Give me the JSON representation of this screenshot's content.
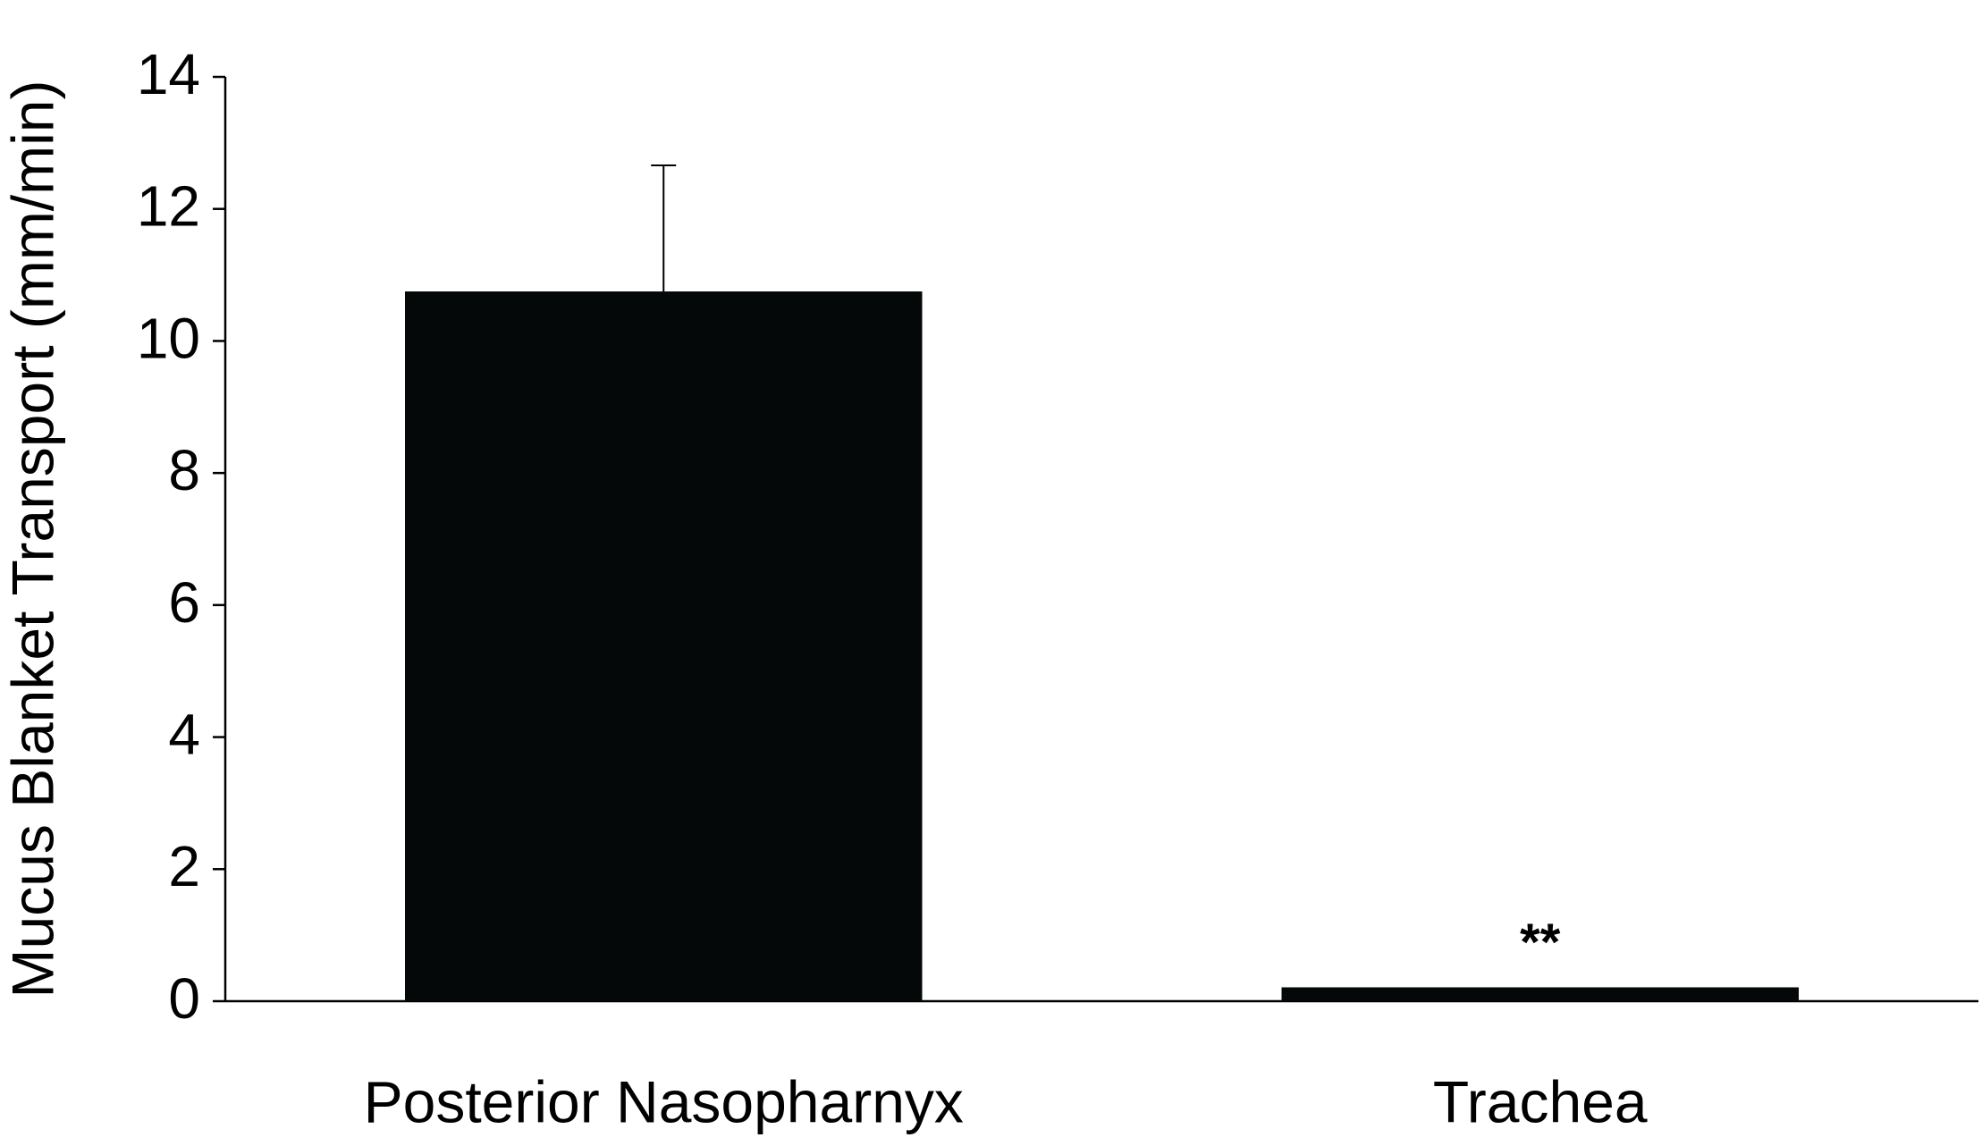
{
  "chart_data": {
    "type": "bar",
    "y_label": "Mucus Blanket Transport (mm/min)",
    "categories": [
      "Posterior Nasopharnyx",
      "Trachea"
    ],
    "values": [
      10.75,
      0.21
    ],
    "errors": [
      1.91,
      null
    ],
    "color": "#050808",
    "ylim": [
      0,
      14
    ],
    "yticks": [
      0,
      2,
      4,
      6,
      8,
      10,
      12,
      14
    ],
    "grid": false,
    "annotations": [
      {
        "text": "**",
        "x": "Trachea"
      }
    ]
  }
}
